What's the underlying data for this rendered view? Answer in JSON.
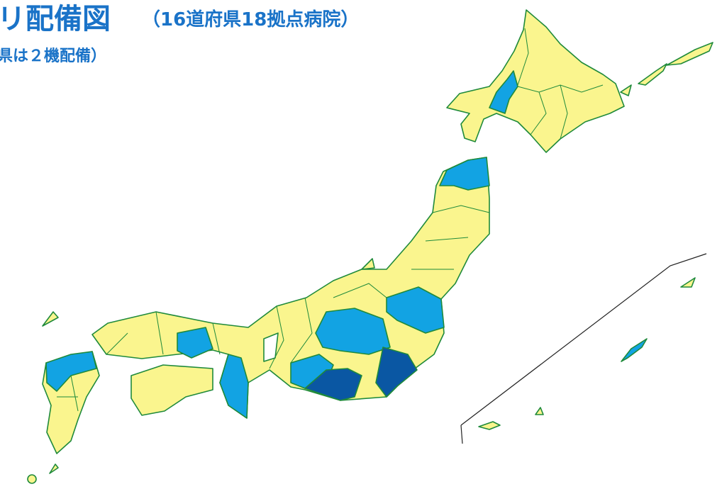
{
  "title": {
    "main": "リ配備図",
    "sub": "（16道府県18拠点病院）",
    "note": "県は２機配備）"
  }
}
